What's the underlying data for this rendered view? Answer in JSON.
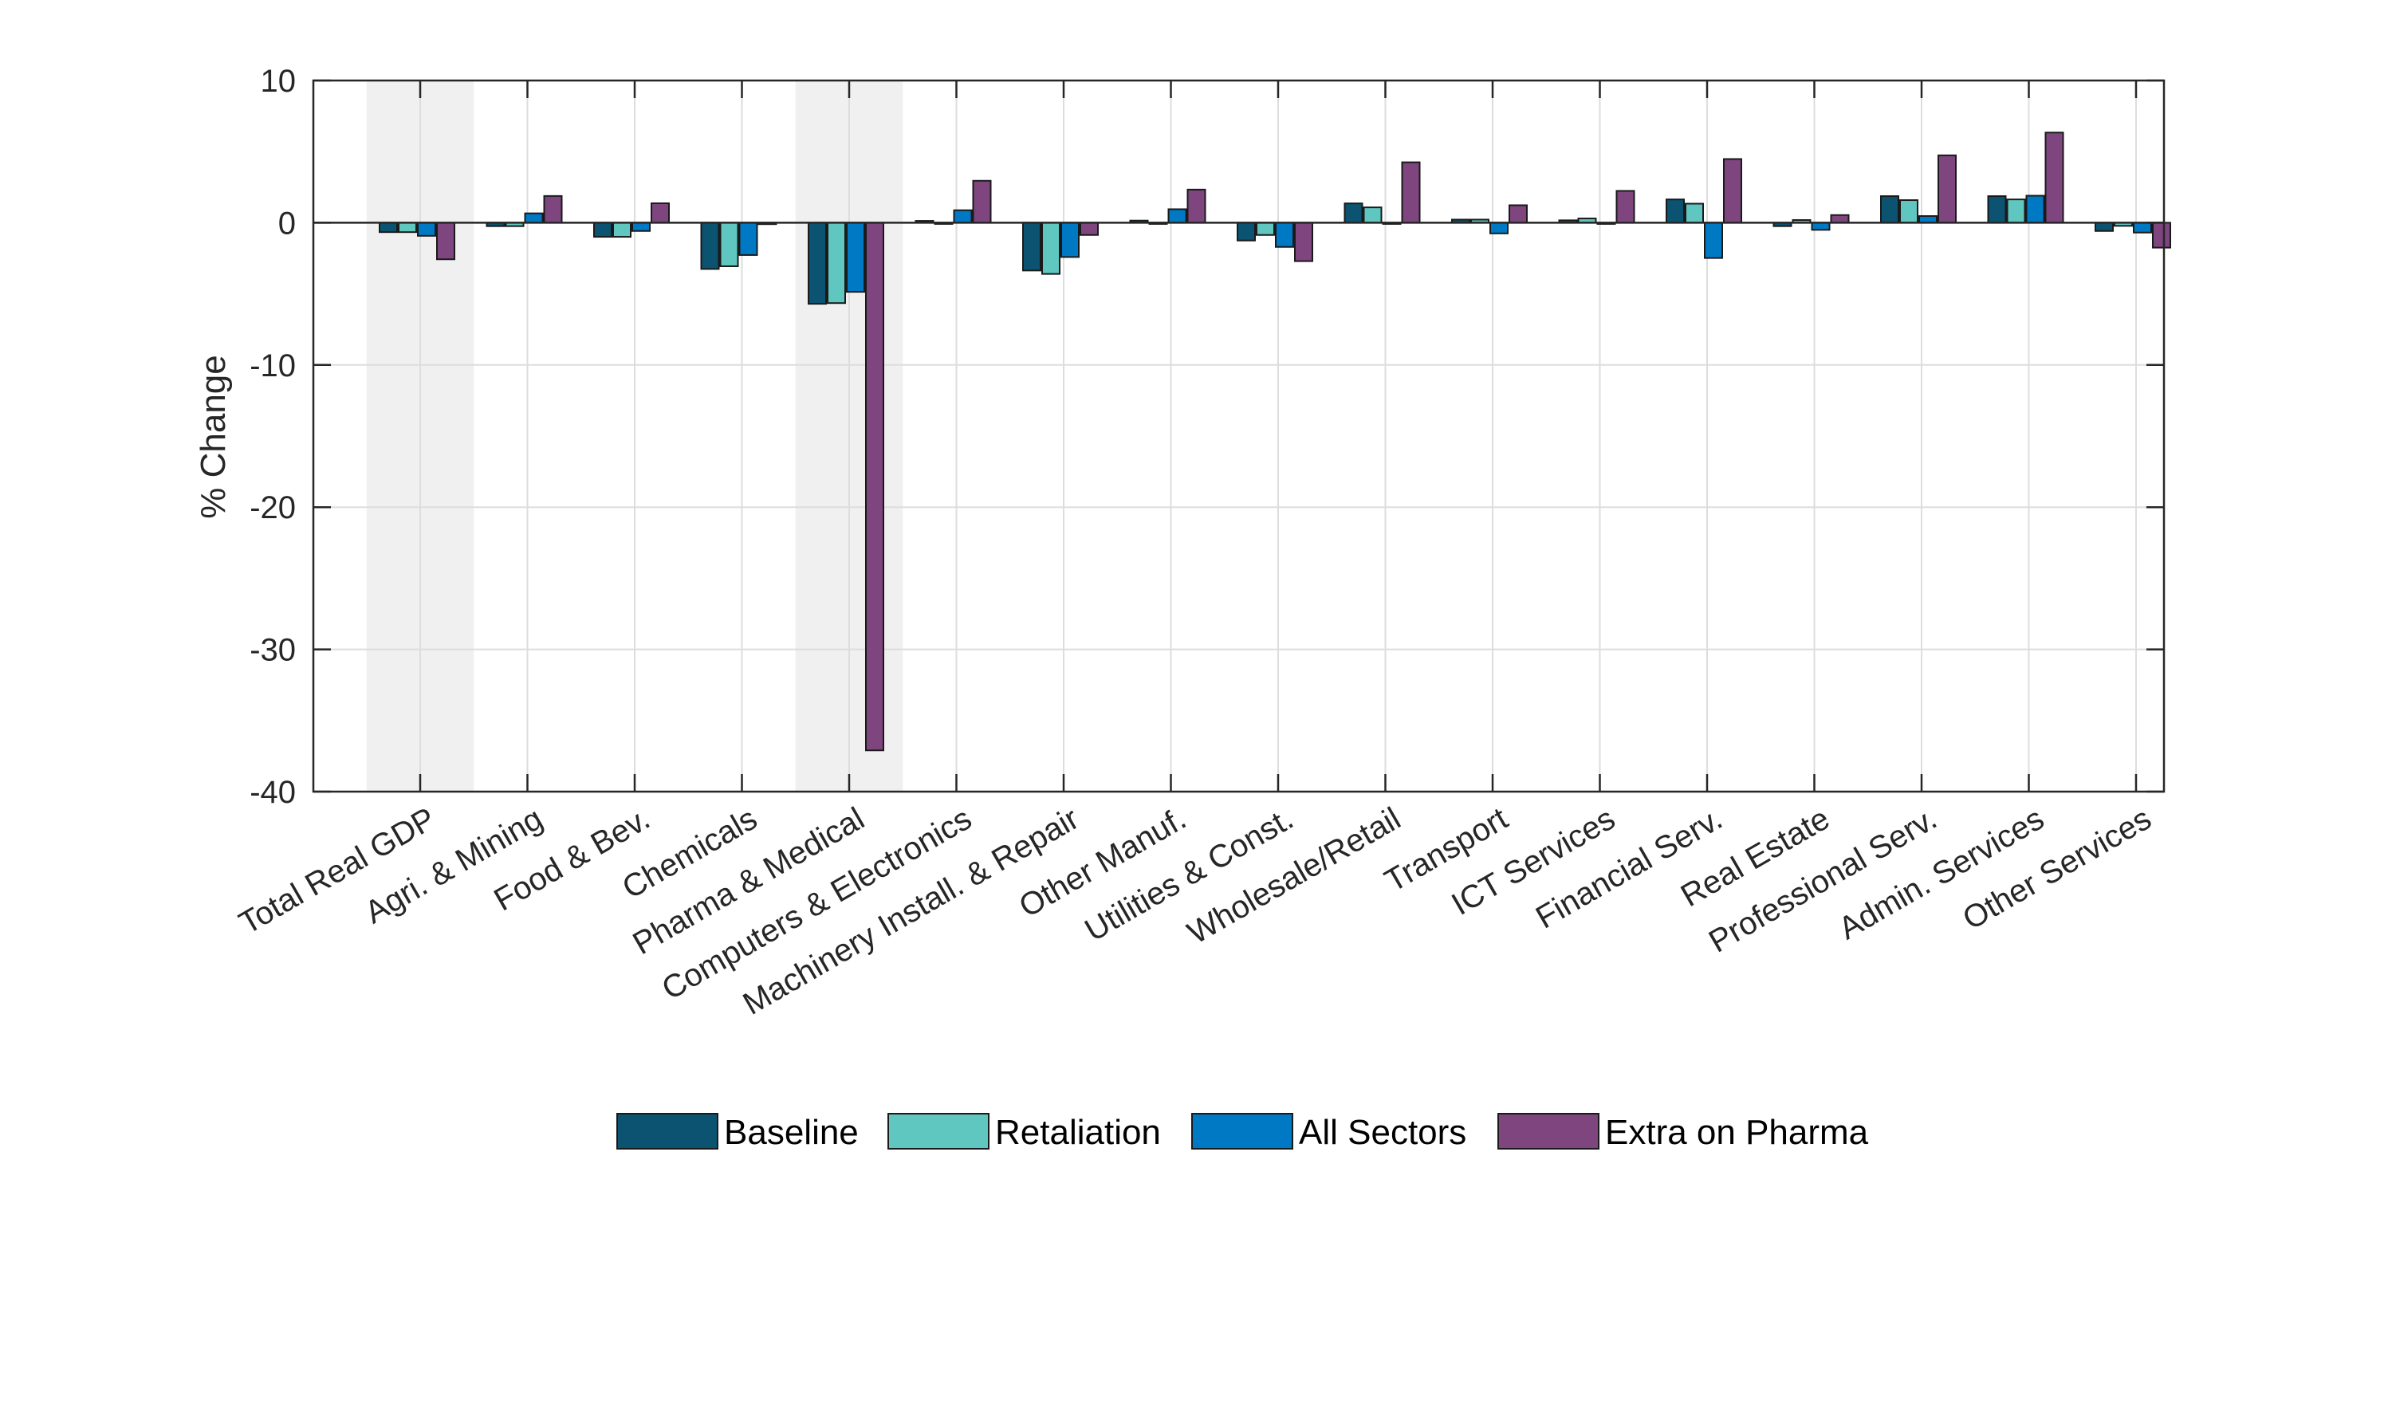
{
  "chart_data": {
    "type": "bar",
    "title": "",
    "xlabel": "",
    "ylabel": "% Change",
    "ylim": [
      -40,
      10
    ],
    "yticks": [
      10,
      0,
      -10,
      -20,
      -30,
      -40
    ],
    "grid": true,
    "legend_position": "bottom-center",
    "highlighted_categories": [
      "Total Real GDP",
      "Pharma & Medical"
    ],
    "categories": [
      "Total Real GDP",
      "Agri. & Mining",
      "Food & Bev.",
      "Chemicals",
      "Pharma & Medical",
      "Computers & Electronics",
      "Machinery Install. & Repair",
      "Other Manuf.",
      "Utilities & Const.",
      "Wholesale/Retail",
      "Transport",
      "ICT Services",
      "Financial Serv.",
      "Real Estate",
      "Professional Serv.",
      "Admin. Services",
      "Other Services"
    ],
    "series": [
      {
        "name": "Baseline",
        "color": "#0b5370",
        "values": [
          -0.66,
          -0.24,
          -0.99,
          -3.25,
          -5.7,
          0.13,
          -3.36,
          0.15,
          -1.25,
          1.36,
          0.22,
          0.17,
          1.64,
          -0.24,
          1.87,
          1.87,
          -0.58
        ]
      },
      {
        "name": "Retaliation",
        "color": "#5fc6c0",
        "values": [
          -0.66,
          -0.24,
          -0.99,
          -3.06,
          -5.65,
          0.0,
          -3.6,
          0.0,
          -0.86,
          1.08,
          0.22,
          0.3,
          1.34,
          0.19,
          1.59,
          1.64,
          -0.22
        ]
      },
      {
        "name": "All Sectors",
        "color": "#0079c5",
        "values": [
          -0.92,
          0.66,
          -0.58,
          -2.27,
          -4.86,
          0.88,
          -2.41,
          0.95,
          -1.7,
          0.0,
          -0.75,
          -0.07,
          -2.48,
          -0.5,
          0.47,
          1.9,
          -0.69
        ]
      },
      {
        "name": "Extra on Pharma",
        "color": "#7e457e",
        "values": [
          -2.57,
          1.88,
          1.37,
          -0.1,
          -37.1,
          2.95,
          -0.86,
          2.33,
          -2.7,
          4.25,
          1.23,
          2.24,
          4.48,
          0.54,
          4.74,
          6.34,
          -1.75
        ]
      }
    ]
  }
}
